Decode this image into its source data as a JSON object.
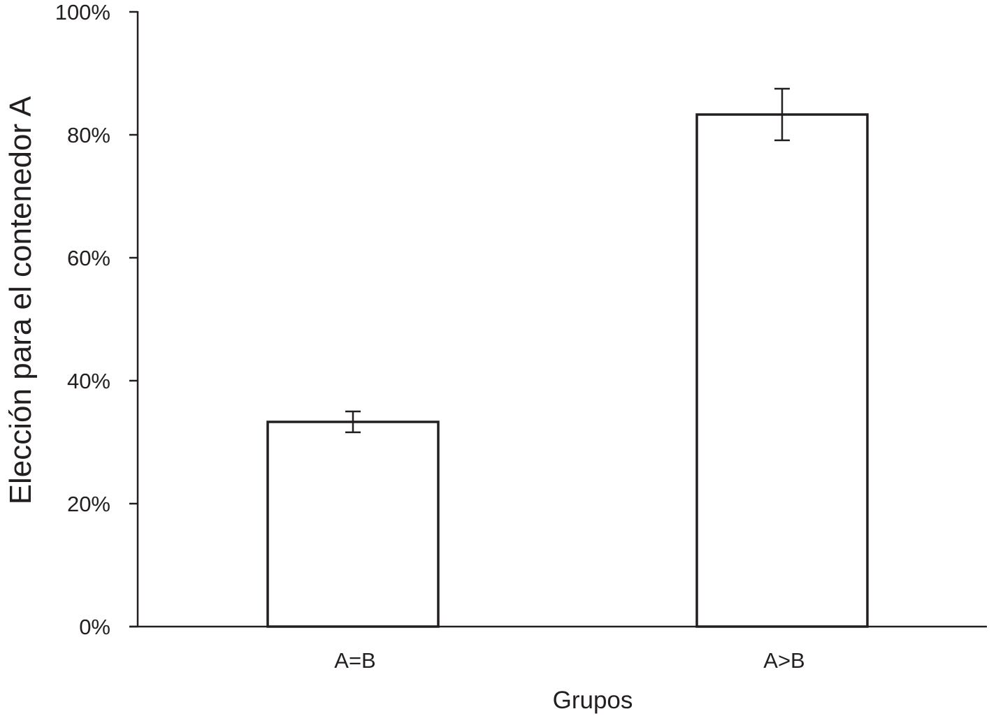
{
  "chart_data": {
    "type": "bar",
    "title": "",
    "xlabel": "Grupos",
    "ylabel": "Elección para el contenedor A",
    "categories": [
      "A=B",
      "A>B"
    ],
    "values": [
      33.3,
      83.3
    ],
    "error": [
      1.7,
      4.2
    ],
    "ylim": [
      0,
      100
    ],
    "yticks": [
      0,
      20,
      40,
      60,
      80,
      100
    ],
    "ytick_labels": [
      "0%",
      "20%",
      "40%",
      "60%",
      "80%",
      "100%"
    ],
    "grid": false,
    "legend": "none",
    "bar_fill": "#ffffff",
    "line_color": "#231f20"
  }
}
